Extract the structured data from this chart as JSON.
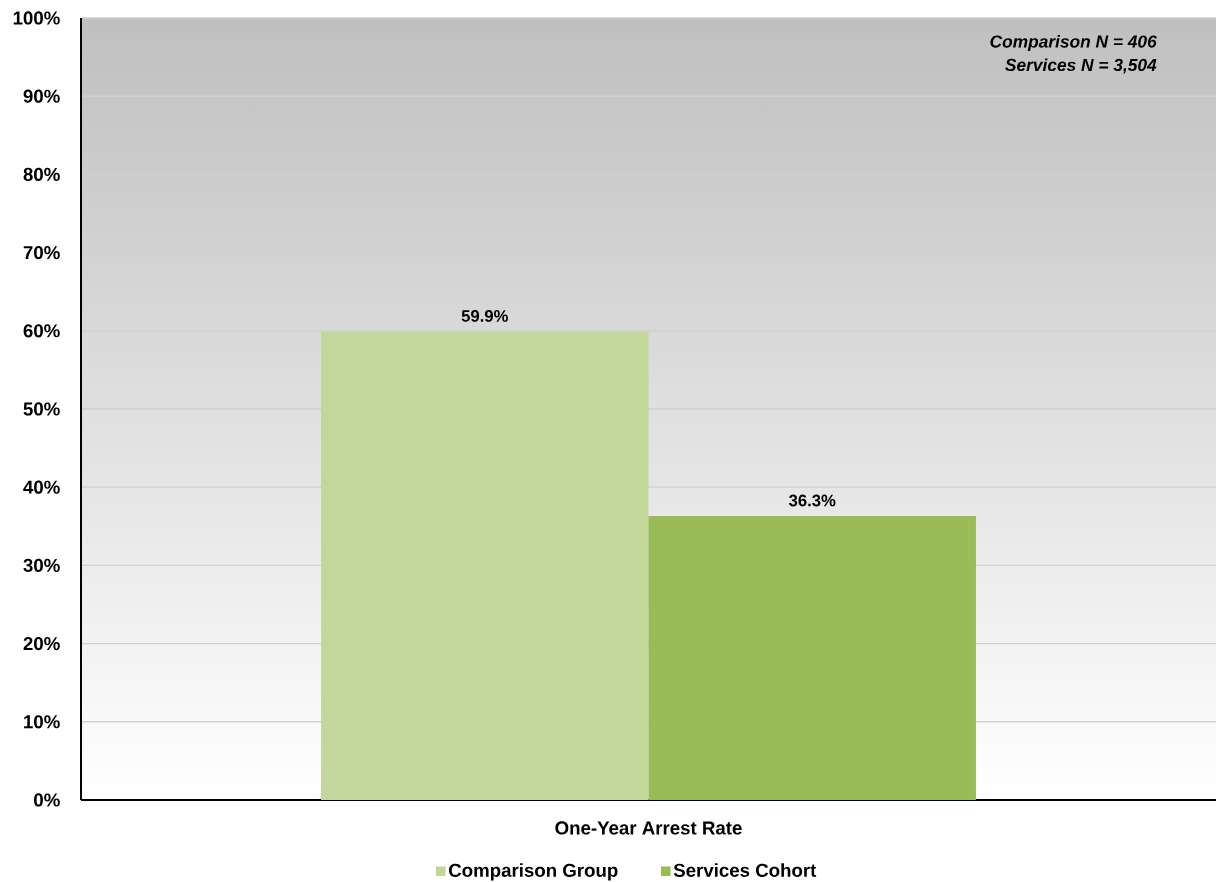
{
  "chart_data": {
    "type": "bar",
    "categories": [
      "One-Year Arrest Rate"
    ],
    "series": [
      {
        "name": "Comparison Group",
        "color": "#c4d79b",
        "values": [
          59.9
        ],
        "value_labels": [
          "59.9%"
        ]
      },
      {
        "name": "Services Cohort",
        "color": "#9bbb59",
        "values": [
          36.3
        ],
        "value_labels": [
          "36.3%"
        ]
      }
    ],
    "ylim": [
      0,
      100
    ],
    "yticks": [
      {
        "value": 0,
        "label": "0%"
      },
      {
        "value": 10,
        "label": "10%"
      },
      {
        "value": 20,
        "label": "20%"
      },
      {
        "value": 30,
        "label": "30%"
      },
      {
        "value": 40,
        "label": "40%"
      },
      {
        "value": 50,
        "label": "50%"
      },
      {
        "value": 60,
        "label": "60%"
      },
      {
        "value": 70,
        "label": "70%"
      },
      {
        "value": 80,
        "label": "80%"
      },
      {
        "value": 90,
        "label": "90%"
      },
      {
        "value": 100,
        "label": "100%"
      }
    ],
    "grid": "y",
    "legend": "bottom",
    "annotations": [
      "Comparison N = 406",
      "Services N = 3,504"
    ]
  }
}
